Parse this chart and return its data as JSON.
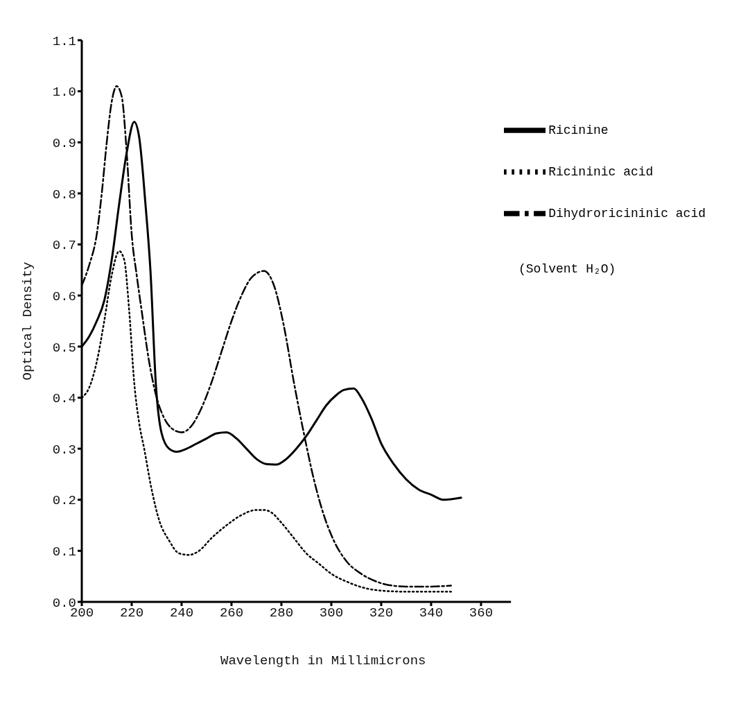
{
  "chart_data": {
    "type": "line",
    "xlabel": "Wavelength in Millimicrons",
    "ylabel": "Optical Density",
    "xlim": [
      200,
      372
    ],
    "xticks": [
      200,
      220,
      240,
      260,
      280,
      300,
      320,
      340,
      360
    ],
    "ylim": [
      0,
      1.1
    ],
    "yticks": [
      {
        "value": 0,
        "label": "0.0"
      },
      {
        "value": 0.1,
        "label": "0.1"
      },
      {
        "value": 0.2,
        "label": "0.2"
      },
      {
        "value": 0.3,
        "label": "0.3"
      },
      {
        "value": 0.4,
        "label": "0.4"
      },
      {
        "value": 0.5,
        "label": "0.5"
      },
      {
        "value": 0.6,
        "label": "0.6"
      },
      {
        "value": 0.7,
        "label": "0.7"
      },
      {
        "value": 0.8,
        "label": "0.8"
      },
      {
        "value": 0.9,
        "label": "0.9"
      },
      {
        "value": 1.0,
        "label": "1.0"
      },
      {
        "value": 1.1,
        "label": "1.1"
      }
    ],
    "grid": false,
    "legend": "top right",
    "marker": "none",
    "annotations": [
      "(Solvent H₂O)"
    ],
    "series": [
      {
        "name": "Ricinine",
        "color": "#000000",
        "line_style": "solid",
        "x": [
          200,
          203,
          206,
          209,
          212,
          215,
          218,
          221,
          223,
          225.5,
          227.5,
          229.7,
          232,
          235,
          238,
          242,
          246,
          250,
          254,
          258,
          262,
          266,
          270,
          274,
          278,
          282,
          286,
          290,
          294,
          298,
          302,
          305,
          309,
          312,
          316,
          320,
          325,
          330,
          335,
          340,
          345,
          352
        ],
        "values": [
          0.5,
          0.52,
          0.55,
          0.59,
          0.67,
          0.78,
          0.88,
          0.94,
          0.91,
          0.78,
          0.65,
          0.425,
          0.33,
          0.3,
          0.294,
          0.3,
          0.31,
          0.32,
          0.33,
          0.332,
          0.32,
          0.3,
          0.28,
          0.27,
          0.269,
          0.28,
          0.3,
          0.325,
          0.355,
          0.385,
          0.405,
          0.415,
          0.418,
          0.4,
          0.36,
          0.31,
          0.27,
          0.24,
          0.22,
          0.21,
          0.2,
          0.204
        ]
      },
      {
        "name": "Ricininic acid",
        "color": "#000000",
        "line_style": "dotted",
        "x": [
          200,
          203,
          206,
          209,
          212,
          215,
          217,
          219,
          221,
          223,
          225,
          228,
          231,
          235,
          239,
          243,
          247,
          252,
          258,
          264,
          270,
          273,
          276,
          280,
          285,
          290,
          295,
          300,
          306,
          312,
          320,
          330,
          340,
          348
        ],
        "values": [
          0.4,
          0.42,
          0.47,
          0.55,
          0.64,
          0.687,
          0.67,
          0.57,
          0.43,
          0.35,
          0.3,
          0.22,
          0.16,
          0.12,
          0.095,
          0.092,
          0.1,
          0.125,
          0.15,
          0.17,
          0.18,
          0.18,
          0.175,
          0.155,
          0.125,
          0.095,
          0.075,
          0.055,
          0.04,
          0.029,
          0.022,
          0.02,
          0.02,
          0.02
        ]
      },
      {
        "name": "Dihydroricininic acid",
        "color": "#000000",
        "line_style": "dashed",
        "x": [
          200,
          203,
          206,
          208,
          210,
          212,
          214,
          216,
          218,
          220,
          222,
          224,
          227,
          230,
          233,
          236,
          240,
          244,
          248,
          252,
          256,
          260,
          264,
          268,
          273,
          277,
          281,
          285,
          289,
          293,
          297,
          301,
          306,
          312,
          318,
          323,
          330,
          340,
          348
        ],
        "values": [
          0.62,
          0.66,
          0.72,
          0.8,
          0.9,
          0.98,
          1.01,
          0.99,
          0.88,
          0.72,
          0.64,
          0.57,
          0.47,
          0.4,
          0.36,
          0.34,
          0.332,
          0.345,
          0.38,
          0.43,
          0.49,
          0.55,
          0.6,
          0.635,
          0.648,
          0.62,
          0.54,
          0.43,
          0.33,
          0.24,
          0.17,
          0.12,
          0.08,
          0.055,
          0.04,
          0.033,
          0.03,
          0.03,
          0.032
        ]
      }
    ]
  }
}
